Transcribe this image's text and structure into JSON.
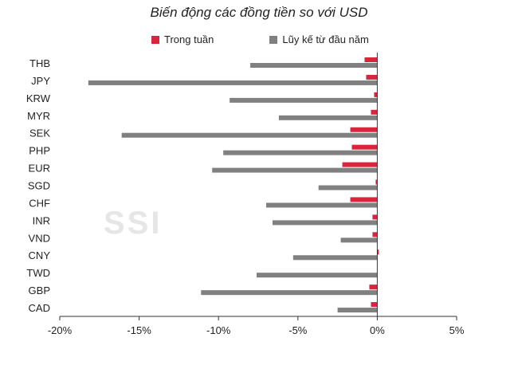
{
  "chart_data": {
    "type": "bar",
    "orientation": "horizontal",
    "title": "Biến động các đồng tiền so với USD",
    "categories": [
      "THB",
      "JPY",
      "KRW",
      "MYR",
      "SEK",
      "PHP",
      "EUR",
      "SGD",
      "CHF",
      "INR",
      "VND",
      "CNY",
      "TWD",
      "GBP",
      "CAD"
    ],
    "series": [
      {
        "name": "Trong tuần",
        "color": "#d7263d",
        "values": [
          -0.8,
          -0.7,
          -0.2,
          -0.4,
          -1.7,
          -1.6,
          -2.2,
          -0.1,
          -1.7,
          -0.3,
          -0.3,
          0.1,
          0.0,
          -0.5,
          -0.4
        ]
      },
      {
        "name": "Lũy kế từ đầu năm",
        "color": "#808080",
        "values": [
          -8.0,
          -18.2,
          -9.3,
          -6.2,
          -16.1,
          -9.7,
          -10.4,
          -3.7,
          -7.0,
          -6.6,
          -2.3,
          -5.3,
          -7.6,
          -11.1,
          -2.5
        ]
      }
    ],
    "xlim": [
      -20,
      5
    ],
    "xticks": [
      -20,
      -15,
      -10,
      -5,
      0,
      5
    ],
    "xtick_labels": [
      "-20%",
      "-15%",
      "-10%",
      "-5%",
      "0%",
      "5%"
    ],
    "legend_position": "top",
    "grid": false
  },
  "watermark": "SSI"
}
